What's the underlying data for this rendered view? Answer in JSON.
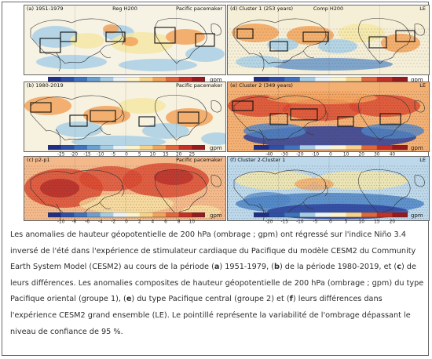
{
  "panels": [
    {
      "label": "(a) 1951-1979",
      "center": "Reg H200",
      "right": "Pacific pacemaker"
    },
    {
      "label": "(b) 1980-2019",
      "center": "",
      "right": "Pacific pacemaker"
    },
    {
      "label": "(c) p2-p1",
      "center": "",
      "right": "Pacific pacemaker"
    },
    {
      "label": "(d) Cluster 1 (253 years)",
      "center": "Comp H200",
      "right": "LE"
    },
    {
      "label": "(e) Cluster 2 (349 years)",
      "center": "",
      "right": "LE"
    },
    {
      "label": "(f) Cluster 2-Cluster 1",
      "center": "",
      "right": "LE"
    }
  ],
  "colorbars": {
    "a": {
      "ticks": [
        "-25",
        "-20",
        "-15",
        "-10",
        "-5",
        "0",
        "5",
        "10",
        "15",
        "20",
        "25"
      ],
      "unit": "gpm"
    },
    "b": {
      "ticks": [
        "-25",
        "-20",
        "-15",
        "-10",
        "-5",
        "0",
        "5",
        "10",
        "15",
        "20",
        "25"
      ],
      "unit": "gpm"
    },
    "c": {
      "ticks": [
        "-10",
        "-8",
        "-6",
        "-4",
        "-2",
        "0",
        "2",
        "4",
        "6",
        "8",
        "10"
      ],
      "unit": "gpm"
    },
    "d": {
      "ticks": [
        "-40",
        "-30",
        "-20",
        "-10",
        "0",
        "10",
        "20",
        "30",
        "40"
      ],
      "unit": "gpm"
    },
    "e": {
      "ticks": [
        "-40",
        "-30",
        "-20",
        "-10",
        "0",
        "10",
        "20",
        "30",
        "40"
      ],
      "unit": "gpm"
    },
    "f": {
      "ticks": [
        "-20",
        "-15",
        "-10",
        "-5",
        "0",
        "5",
        "10",
        "15",
        "20"
      ],
      "unit": "gpm"
    }
  },
  "colors": {
    "blue_dark": "#2b3f9a",
    "blue": "#4f86c6",
    "blue_light": "#a9d0e6",
    "white": "#f7f7f7",
    "yellow": "#f6e7a6",
    "orange": "#f2a35c",
    "red": "#d9472f",
    "red_dark": "#a51d22"
  },
  "caption": {
    "p1": "Les anomalies de hauteur géopotentielle de 200 hPa (ombrage ; gpm) ont régressé sur l'indice Niño 3.4 inversé de l'été dans l'expérience de stimulateur cardiaque du Pacifique du modèle CESM2 du Community Earth System Model (CESM2) au cours de la période (",
    "a": "a",
    "p2": ") 1951-1979, (",
    "b": "b",
    "p3": ") de la période 1980-2019, et (",
    "c": "c",
    "p4": ") de leurs différences. Les anomalies composites de hauteur géopotentielle de 200 hPa (ombrage ; gpm) du type Pacifique oriental (groupe 1), (",
    "e": "e",
    "p5": ") du type Pacifique central (groupe 2) et (",
    "f": "f",
    "p6": ") leurs différences dans l'expérience CESM2 grand ensemble (LE). Le pointillé représente la variabilité de l'ombrage dépassant le niveau de confiance de 95 %."
  }
}
